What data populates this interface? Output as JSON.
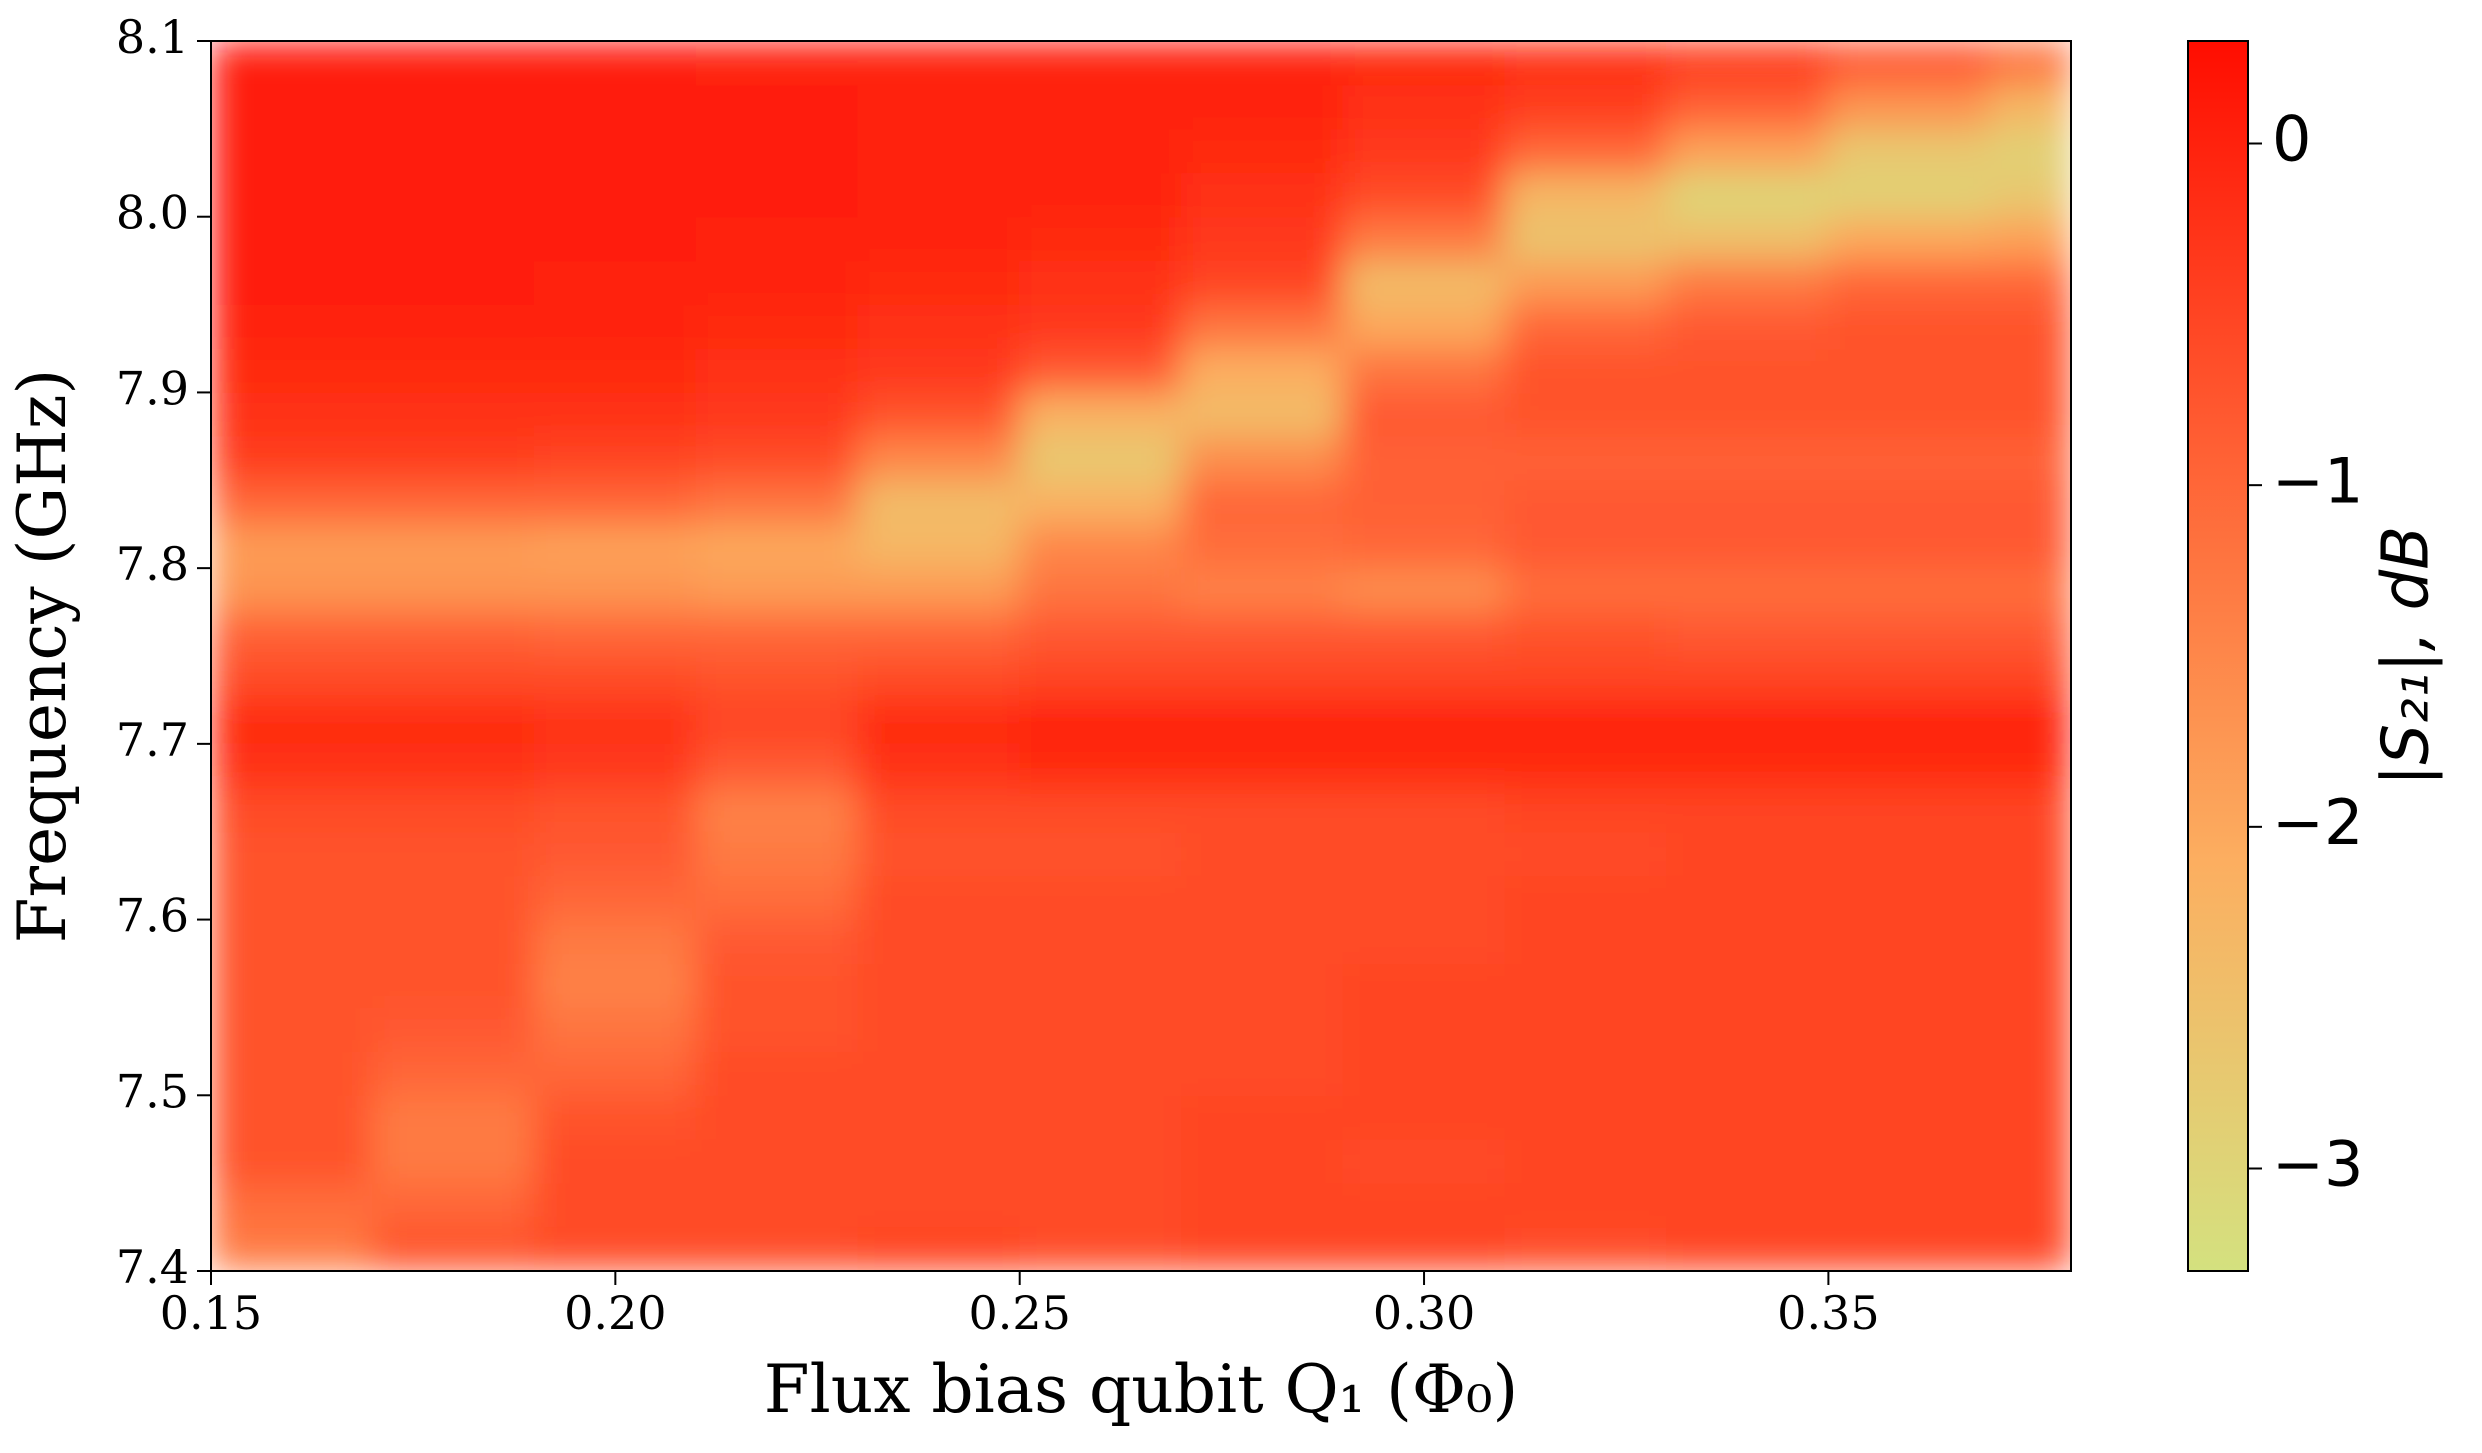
{
  "chart_data": {
    "type": "heatmap",
    "xlabel": "Flux bias qubit Q₁ (Φ₀)",
    "ylabel": "Frequency (GHz)",
    "colorbar_label": "|S₂₁|, dB",
    "xlim": [
      0.15,
      0.38
    ],
    "ylim": [
      7.4,
      8.1
    ],
    "zlim": [
      -3.3,
      0.3
    ],
    "xticks": [
      0.15,
      {
        "value": 0.2,
        "label": "0.20"
      },
      0.25,
      {
        "value": 0.3,
        "label": "0.30"
      },
      0.35
    ],
    "yticks": [
      7.4,
      7.5,
      7.6,
      7.7,
      7.8,
      7.9,
      {
        "value": 8.0,
        "label": "8.0"
      },
      8.1
    ],
    "zticks": [
      0,
      {
        "value": -1,
        "label": "−1"
      },
      {
        "value": -2,
        "label": "−2"
      },
      {
        "value": -3,
        "label": "−3"
      }
    ],
    "colormap": [
      "#d4e17f",
      "#fcae60",
      "#ff6034",
      "#ff0d00"
    ],
    "x_edges": [
      0.15,
      0.17,
      0.19,
      0.21,
      0.23,
      0.25,
      0.27,
      0.29,
      0.31,
      0.33,
      0.35,
      0.37,
      0.38
    ],
    "y_edges": [
      7.4,
      7.425,
      7.45,
      7.475,
      7.5,
      7.525,
      7.55,
      7.575,
      7.6,
      7.625,
      7.65,
      7.675,
      7.7,
      7.725,
      7.75,
      7.775,
      7.8,
      7.825,
      7.85,
      7.875,
      7.9,
      7.925,
      7.95,
      7.975,
      8.0,
      8.025,
      8.05,
      8.075,
      8.1
    ],
    "z": [
      [
        -1.3,
        -0.7,
        -0.6,
        -0.6,
        -0.5,
        -0.6,
        -0.5,
        -0.5,
        -0.6,
        -0.5,
        -0.5,
        -0.5
      ],
      [
        -1.1,
        -1.0,
        -0.6,
        -0.6,
        -0.6,
        -0.6,
        -0.5,
        -0.5,
        -0.5,
        -0.5,
        -0.5,
        -0.5
      ],
      [
        -0.7,
        -1.3,
        -0.6,
        -0.6,
        -0.6,
        -0.6,
        -0.5,
        -0.6,
        -0.5,
        -0.5,
        -0.5,
        -0.5
      ],
      [
        -0.7,
        -1.3,
        -0.7,
        -0.6,
        -0.6,
        -0.6,
        -0.5,
        -0.5,
        -0.5,
        -0.5,
        -0.5,
        -0.5
      ],
      [
        -0.7,
        -1.0,
        -1.0,
        -0.6,
        -0.6,
        -0.6,
        -0.6,
        -0.5,
        -0.5,
        -0.5,
        -0.5,
        -0.5
      ],
      [
        -0.7,
        -0.8,
        -1.2,
        -0.7,
        -0.6,
        -0.6,
        -0.6,
        -0.5,
        -0.5,
        -0.5,
        -0.5,
        -0.5
      ],
      [
        -0.7,
        -0.7,
        -1.4,
        -0.7,
        -0.6,
        -0.6,
        -0.6,
        -0.5,
        -0.5,
        -0.5,
        -0.5,
        -0.5
      ],
      [
        -0.7,
        -0.7,
        -1.3,
        -0.8,
        -0.6,
        -0.6,
        -0.6,
        -0.6,
        -0.5,
        -0.5,
        -0.5,
        -0.5
      ],
      [
        -0.7,
        -0.7,
        -1.0,
        -1.1,
        -0.6,
        -0.6,
        -0.6,
        -0.6,
        -0.5,
        -0.5,
        -0.5,
        -0.5
      ],
      [
        -0.7,
        -0.7,
        -0.8,
        -1.3,
        -0.7,
        -0.7,
        -0.6,
        -0.6,
        -0.6,
        -0.5,
        -0.5,
        -0.5
      ],
      [
        -0.6,
        -0.6,
        -0.7,
        -1.4,
        -0.6,
        -0.6,
        -0.6,
        -0.6,
        -0.5,
        -0.5,
        -0.5,
        -0.5
      ],
      [
        -0.2,
        -0.2,
        -0.3,
        -0.8,
        -0.2,
        -0.1,
        -0.1,
        -0.1,
        -0.1,
        -0.1,
        -0.1,
        -0.1
      ],
      [
        -0.1,
        -0.1,
        -0.2,
        -0.5,
        -0.1,
        0.0,
        0.0,
        0.0,
        0.0,
        0.0,
        0.0,
        0.0
      ],
      [
        -0.6,
        -0.6,
        -0.6,
        -0.7,
        -0.6,
        -0.5,
        -0.5,
        -0.5,
        -0.5,
        -0.5,
        -0.5,
        -0.5
      ],
      [
        -0.9,
        -0.9,
        -1.0,
        -1.0,
        -1.0,
        -0.8,
        -0.8,
        -0.8,
        -0.7,
        -0.8,
        -0.8,
        -0.8
      ],
      [
        -1.7,
        -1.7,
        -1.7,
        -1.8,
        -1.8,
        -1.2,
        -1.4,
        -1.6,
        -1.1,
        -1.1,
        -1.1,
        -1.1
      ],
      [
        -1.8,
        -1.8,
        -1.9,
        -2.0,
        -2.3,
        -1.5,
        -1.1,
        -1.0,
        -0.8,
        -0.8,
        -0.8,
        -0.8
      ],
      [
        -1.0,
        -1.0,
        -1.0,
        -1.2,
        -2.4,
        -2.2,
        -1.0,
        -0.9,
        -0.8,
        -0.8,
        -0.8,
        -0.8
      ],
      [
        -0.4,
        -0.4,
        -0.5,
        -0.6,
        -1.5,
        -2.7,
        -1.6,
        -0.9,
        -0.9,
        -0.9,
        -0.9,
        -0.9
      ],
      [
        -0.2,
        -0.2,
        -0.2,
        -0.3,
        -0.7,
        -2.2,
        -2.4,
        -0.8,
        -0.7,
        -0.7,
        -0.7,
        -0.7
      ],
      [
        -0.1,
        -0.1,
        -0.1,
        -0.2,
        -0.3,
        -0.8,
        -2.1,
        -1.2,
        -0.7,
        -0.7,
        -0.7,
        -0.7
      ],
      [
        0.0,
        0.0,
        0.0,
        -0.1,
        -0.2,
        -0.3,
        -1.2,
        -2.0,
        -1.0,
        -0.8,
        -0.7,
        -0.7
      ],
      [
        0.1,
        0.1,
        0.0,
        0.0,
        -0.1,
        -0.2,
        -0.5,
        -2.4,
        -1.8,
        -1.3,
        -1.0,
        -1.0
      ],
      [
        0.1,
        0.1,
        0.1,
        0.0,
        0.0,
        -0.1,
        -0.3,
        -1.3,
        -2.6,
        -2.5,
        -2.0,
        -1.9
      ],
      [
        0.1,
        0.1,
        0.1,
        0.1,
        0.0,
        0.0,
        -0.2,
        -0.6,
        -2.3,
        -3.0,
        -2.9,
        -2.7
      ],
      [
        0.1,
        0.1,
        0.1,
        0.1,
        0.0,
        0.0,
        -0.1,
        -0.3,
        -1.0,
        -1.9,
        -2.7,
        -2.9
      ],
      [
        0.1,
        0.1,
        0.1,
        0.1,
        0.0,
        0.0,
        0.0,
        -0.2,
        -0.4,
        -0.9,
        -1.7,
        -2.3
      ],
      [
        0.1,
        0.1,
        0.1,
        0.0,
        0.0,
        0.0,
        0.0,
        -0.1,
        -0.2,
        -0.4,
        -0.8,
        -1.2
      ]
    ]
  }
}
